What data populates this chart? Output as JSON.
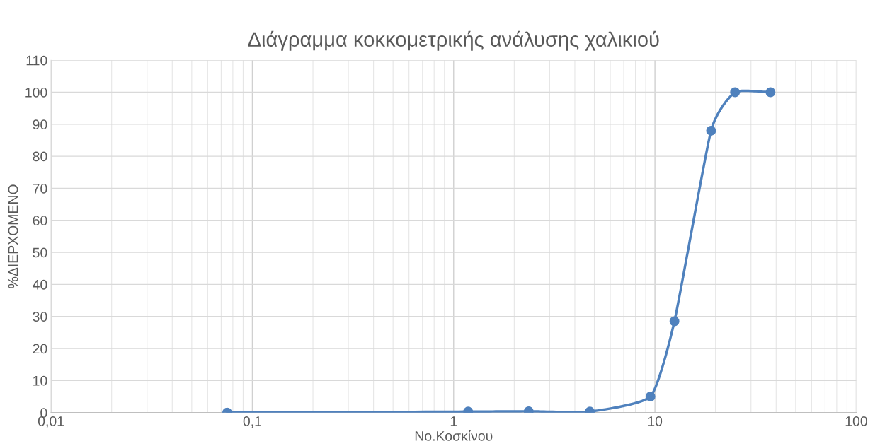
{
  "chart_data": {
    "type": "line",
    "title": "Διάγραμμα κοκκομετρικής ανάλυσης χαλικιού",
    "xlabel": "No.Κοσκίνου",
    "ylabel": "%ΔΙΕΡΧΟΜΕΝΟ",
    "x": [
      0.075,
      1.18,
      2.36,
      4.75,
      9.5,
      12.5,
      19,
      25,
      37.5
    ],
    "series": [
      {
        "color": "#4f81bd",
        "values": [
          0,
          0.3,
          0.4,
          0.3,
          5,
          28.5,
          88,
          100,
          100
        ]
      }
    ],
    "log": "x",
    "xlim": [
      0.01,
      100
    ],
    "xticks": [
      {
        "value": 0.01,
        "label": "0,01"
      },
      {
        "value": 0.1,
        "label": "0,1"
      },
      1,
      10,
      100
    ],
    "ylim": [
      0,
      110
    ],
    "yticks": [
      0,
      10,
      20,
      30,
      40,
      50,
      60,
      70,
      80,
      90,
      100,
      110
    ],
    "grid": true,
    "marker": "circle",
    "line_style": "solid"
  }
}
